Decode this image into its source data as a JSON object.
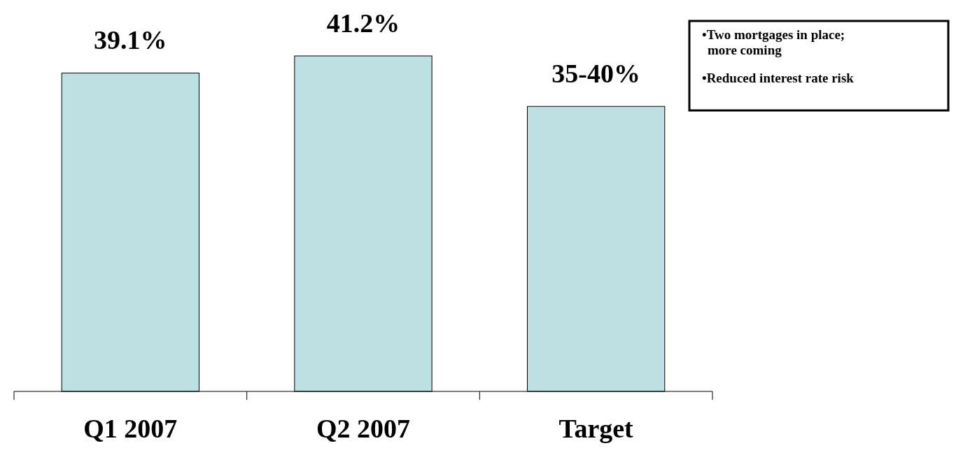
{
  "chart_data": {
    "type": "bar",
    "categories": [
      "Q1 2007",
      "Q2 2007",
      "Target"
    ],
    "values": [
      39.1,
      41.2,
      35
    ],
    "color": "#bde0e3",
    "value_labels": [
      "39.1%",
      "41.2%",
      "35-40%"
    ],
    "annotations": [
      "•Two mortgages in place; more coming",
      "•Reduced interest rate risk"
    ]
  }
}
